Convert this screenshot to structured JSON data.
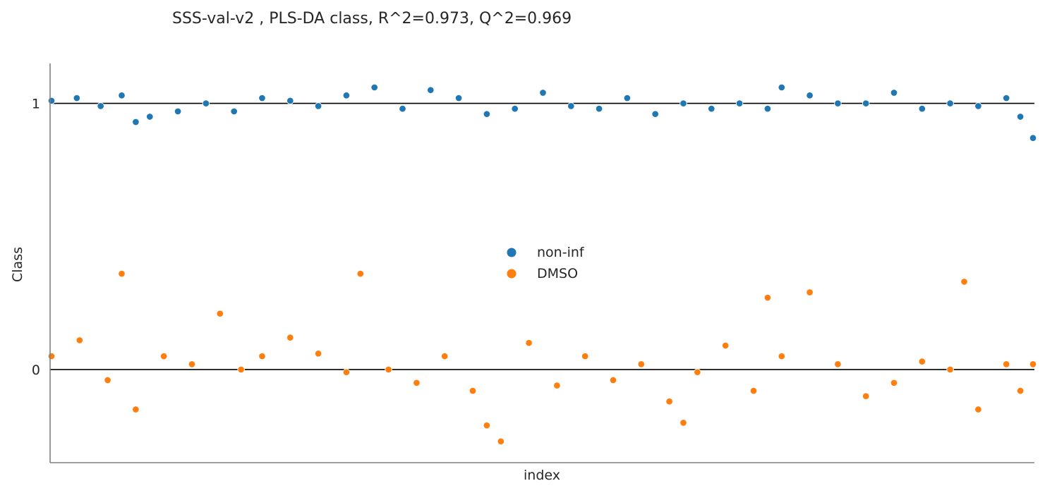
{
  "chart_data": {
    "type": "scatter",
    "title": "SSS-val-v2 , PLS-DA class, R^2=0.973, Q^2=0.969",
    "xlabel": "index",
    "ylabel": "Class",
    "x_ticks_shown": false,
    "xlim": [
      0,
      699
    ],
    "ylim": [
      -0.35,
      1.15
    ],
    "y_ticks": [
      {
        "value": 0,
        "label": "0"
      },
      {
        "value": 1,
        "label": "1"
      }
    ],
    "reference_lines": [
      0,
      1
    ],
    "grid": false,
    "legend_position": "center",
    "series": [
      {
        "name": "non-inf",
        "color": "#1f77b4",
        "points": [
          [
            0,
            1.01
          ],
          [
            18,
            1.02
          ],
          [
            35,
            0.99
          ],
          [
            50,
            1.03
          ],
          [
            60,
            0.93
          ],
          [
            70,
            0.95
          ],
          [
            90,
            0.97
          ],
          [
            110,
            1.0
          ],
          [
            130,
            0.97
          ],
          [
            150,
            1.02
          ],
          [
            170,
            1.01
          ],
          [
            190,
            0.99
          ],
          [
            210,
            1.03
          ],
          [
            230,
            1.06
          ],
          [
            250,
            0.98
          ],
          [
            270,
            1.05
          ],
          [
            290,
            1.02
          ],
          [
            310,
            0.96
          ],
          [
            330,
            0.98
          ],
          [
            350,
            1.04
          ],
          [
            370,
            0.99
          ],
          [
            390,
            0.98
          ],
          [
            410,
            1.02
          ],
          [
            430,
            0.96
          ],
          [
            450,
            1.0
          ],
          [
            470,
            0.98
          ],
          [
            490,
            1.0
          ],
          [
            510,
            0.98
          ],
          [
            520,
            1.06
          ],
          [
            540,
            1.03
          ],
          [
            560,
            1.0
          ],
          [
            580,
            1.0
          ],
          [
            600,
            1.04
          ],
          [
            620,
            0.98
          ],
          [
            640,
            1.0
          ],
          [
            660,
            0.99
          ],
          [
            680,
            1.02
          ],
          [
            690,
            0.95
          ],
          [
            699,
            0.87
          ]
        ]
      },
      {
        "name": "DMSO",
        "color": "#ff7f0e",
        "points": [
          [
            0,
            0.05
          ],
          [
            20,
            0.11
          ],
          [
            40,
            -0.04
          ],
          [
            50,
            0.36
          ],
          [
            60,
            -0.15
          ],
          [
            80,
            0.05
          ],
          [
            100,
            0.02
          ],
          [
            120,
            0.21
          ],
          [
            135,
            0.0
          ],
          [
            150,
            0.05
          ],
          [
            170,
            0.12
          ],
          [
            190,
            0.06
          ],
          [
            210,
            -0.01
          ],
          [
            220,
            0.36
          ],
          [
            240,
            0.0
          ],
          [
            260,
            -0.05
          ],
          [
            280,
            0.05
          ],
          [
            300,
            -0.08
          ],
          [
            310,
            -0.21
          ],
          [
            320,
            -0.27
          ],
          [
            340,
            0.1
          ],
          [
            360,
            -0.06
          ],
          [
            380,
            0.05
          ],
          [
            400,
            -0.04
          ],
          [
            420,
            0.02
          ],
          [
            440,
            -0.12
          ],
          [
            450,
            -0.2
          ],
          [
            460,
            -0.01
          ],
          [
            480,
            0.09
          ],
          [
            500,
            -0.08
          ],
          [
            510,
            0.27
          ],
          [
            520,
            0.05
          ],
          [
            540,
            0.29
          ],
          [
            560,
            0.02
          ],
          [
            580,
            -0.1
          ],
          [
            600,
            -0.05
          ],
          [
            620,
            0.03
          ],
          [
            640,
            0.0
          ],
          [
            650,
            0.33
          ],
          [
            660,
            -0.15
          ],
          [
            680,
            0.02
          ],
          [
            690,
            -0.08
          ],
          [
            699,
            0.02
          ]
        ]
      }
    ]
  }
}
